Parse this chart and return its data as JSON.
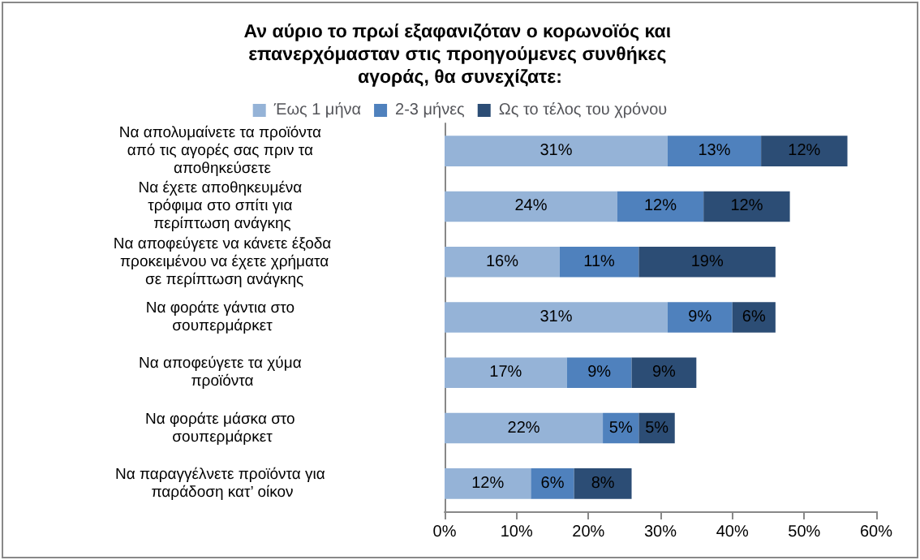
{
  "chart_data": {
    "type": "bar",
    "orientation": "horizontal",
    "stacked": true,
    "title": "Αν αύριο το πρωί εξαφανιζόταν ο κορωνοϊός και επανερχόμασταν στις προηγούμενες συνθήκες αγοράς, θα συνεχίζατε:",
    "categories": [
      "Να απολυμαίνετε τα προϊόντα από τις αγορές σας πριν τα αποθηκεύσετε",
      "Να έχετε αποθηκευμένα τρόφιμα στο σπίτι για περίπτωση ανάγκης",
      "Να αποφεύγετε να κάνετε έξοδα προκειμένου να έχετε χρήματα σε περίπτωση ανάγκης",
      "Να φοράτε γάντια στο σουπερμάρκετ",
      "Να αποφεύγετε τα χύμα προϊόντα",
      "Να φοράτε μάσκα στο σουπερμάρκετ",
      "Να παραγγέλνετε προϊόντα για παράδοση κατ’ οίκον"
    ],
    "series": [
      {
        "name": "Έως 1 μήνα",
        "color": "#95b3d7",
        "values": [
          31,
          24,
          16,
          31,
          17,
          22,
          12
        ],
        "value_labels": [
          "31%",
          "24%",
          "16%",
          "31%",
          "17%",
          "22%",
          "12%"
        ]
      },
      {
        "name": "2-3 μήνες",
        "color": "#4f81bd",
        "values": [
          13,
          12,
          11,
          9,
          9,
          5,
          6
        ],
        "value_labels": [
          "13%",
          "12%",
          "11%",
          "9%",
          "9%",
          "5%",
          "6%"
        ]
      },
      {
        "name": "Ως το τέλος του χρόνου",
        "color": "#2c4d75",
        "values": [
          12,
          12,
          19,
          6,
          9,
          5,
          8
        ],
        "value_labels": [
          "12%",
          "12%",
          "19%",
          "6%",
          "9%",
          "5%",
          "8%"
        ]
      }
    ],
    "xlim": [
      0,
      60
    ],
    "xticks": [
      {
        "value": 0,
        "label": "0%"
      },
      {
        "value": 10,
        "label": "10%"
      },
      {
        "value": 20,
        "label": "20%"
      },
      {
        "value": 30,
        "label": "30%"
      },
      {
        "value": 40,
        "label": "40%"
      },
      {
        "value": 50,
        "label": "50%"
      },
      {
        "value": 60,
        "label": "60%"
      }
    ],
    "grid": false,
    "legend": "top"
  }
}
